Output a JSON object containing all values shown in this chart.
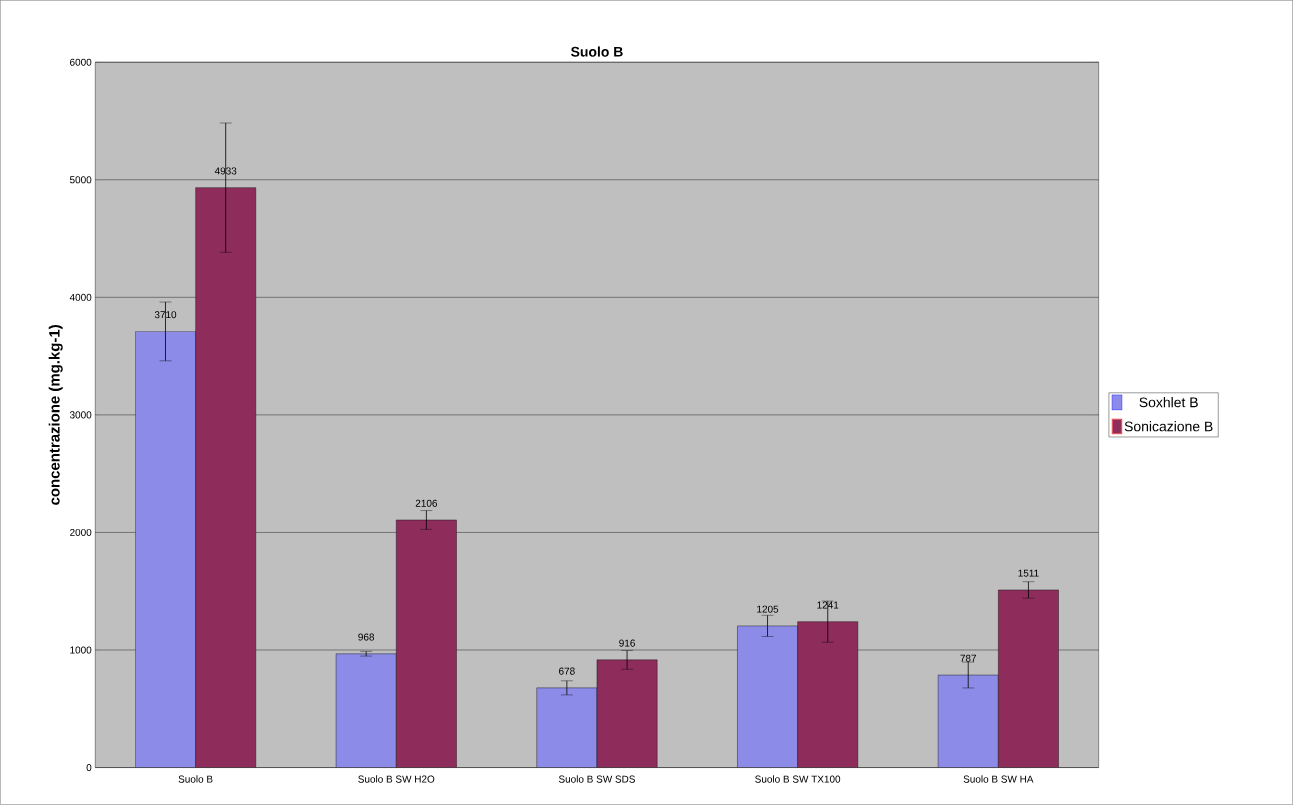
{
  "chart_data": {
    "type": "bar",
    "title": "Suolo B",
    "ylabel": "concentrazione (mg.kg-1)",
    "categories": [
      "Suolo B",
      "Suolo B SW H2O",
      "Suolo B SW SDS",
      "Suolo B SW TX100",
      "Suolo B SW HA"
    ],
    "series": [
      {
        "name": "Soxhlet B",
        "color": "#8c8ce8",
        "values": [
          3710,
          968,
          678,
          1205,
          787
        ],
        "errors": [
          250,
          20,
          60,
          90,
          110
        ]
      },
      {
        "name": "Sonicazione B",
        "color": "#8e2d5c",
        "values": [
          4933,
          2106,
          916,
          1241,
          1511
        ],
        "errors": [
          550,
          80,
          80,
          175,
          70
        ]
      }
    ],
    "ylim": [
      0,
      6000
    ],
    "yticks": [
      0,
      1000,
      2000,
      3000,
      4000,
      5000,
      6000
    ],
    "grid": "y",
    "legend": "right",
    "data_labels": true
  }
}
